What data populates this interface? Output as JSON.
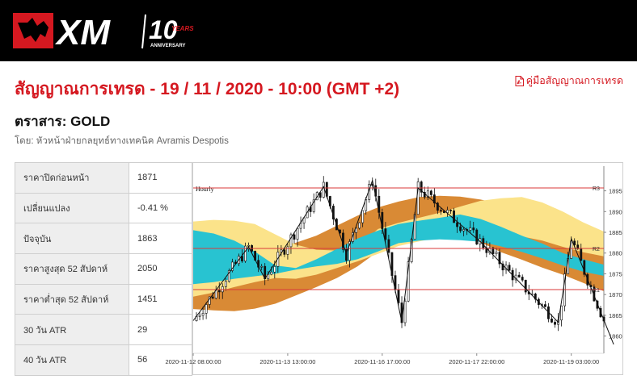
{
  "brand": {
    "name": "XM",
    "anniversary_number": "10",
    "anniversary_word": "YEARS",
    "anniversary_sub": "ANNIVERSARY"
  },
  "page": {
    "title": "สัญญาณการเทรด - 19 / 11 / 2020 - 10:00 (GMT +2)",
    "guide_link": "คู่มือสัญญาณการเทรด",
    "instrument": "ตราสาร: GOLD",
    "byline": "โดย: หัวหน้าฝ่ายกลยุทธ์ทางเทคนิค Avramis Despotis"
  },
  "stats": [
    {
      "label": "ราคาปิดก่อนหน้า",
      "value": "1871"
    },
    {
      "label": "เปลี่ยนแปลง",
      "value": "-0.41 %"
    },
    {
      "label": "ปัจจุบัน",
      "value": "1863"
    },
    {
      "label": "ราคาสูงสุด 52 สัปดาห์",
      "value": "2050"
    },
    {
      "label": "ราคาต่ำสุด 52 สัปดาห์",
      "value": "1451"
    },
    {
      "label": "30 วัน ATR",
      "value": "29"
    },
    {
      "label": "40 วัน ATR",
      "value": "56"
    }
  ],
  "chart_data": {
    "type": "candlestick",
    "timeframe_label": "Hourly",
    "ylim": [
      1857,
      1899
    ],
    "y_ticks": [
      1860,
      1865,
      1870,
      1875,
      1880,
      1885,
      1890,
      1895
    ],
    "x_ticks": [
      {
        "label": "2020-11-12 08:00:00",
        "x": 0
      },
      {
        "label": "2020-11-13 13:00:00",
        "x": 29
      },
      {
        "label": "2020-11-16 17:00:00",
        "x": 58
      },
      {
        "label": "2020-11-17 22:00:00",
        "x": 87
      },
      {
        "label": "2020-11-19 03:00:00",
        "x": 116
      }
    ],
    "x_range": [
      0,
      126
    ],
    "levels": [
      {
        "name": "R3",
        "value": 1895.7
      },
      {
        "name": "R2",
        "value": 1881.1
      },
      {
        "name": "R1",
        "value": 1871.2
      }
    ],
    "zigzag": [
      [
        0,
        1863.7
      ],
      [
        17,
        1881.5
      ],
      [
        22,
        1873.8
      ],
      [
        40,
        1896
      ],
      [
        47,
        1879.8
      ],
      [
        55,
        1897.5
      ],
      [
        64,
        1863.4
      ],
      [
        69,
        1895.7
      ],
      [
        88,
        1882.8
      ],
      [
        112,
        1863.3
      ],
      [
        116,
        1883.5
      ],
      [
        129,
        1858
      ]
    ],
    "bands": {
      "yellow_upper": [
        1887.6,
        1888,
        1887.8,
        1887,
        1884.5,
        1882,
        1880.8,
        1880.6,
        1881.5,
        1885.8,
        1887.3,
        1888.5,
        1889.7,
        1891.2,
        1892.6,
        1893.2,
        1893.5,
        1892.2,
        1890,
        1887.4,
        1885.2
      ],
      "cyan_upper": [
        1885.5,
        1884.7,
        1883,
        1880.4,
        1877,
        1876.4,
        1878.5,
        1881,
        1883.5,
        1885.4,
        1887,
        1887.8,
        1888.5,
        1889.3,
        1888.2,
        1886.3,
        1884.2,
        1882.3,
        1880,
        1878.5,
        1877.2
      ],
      "cyan_lower": [
        1872.5,
        1873,
        1873.8,
        1874.4,
        1875,
        1876,
        1876.8,
        1877.4,
        1878.5,
        1880.4,
        1882.4,
        1883,
        1883.3,
        1883.1,
        1882.7,
        1881.6,
        1880.3,
        1878.7,
        1877,
        1875.5,
        1874.5
      ],
      "yellow_lower": [
        1869.5,
        1870.5,
        1871.8,
        1873,
        1874,
        1873.8,
        1874.8,
        1876.4,
        1878,
        1879.8,
        1881.7,
        1882.8,
        1883.8,
        1884.3,
        1884.8,
        1884.5,
        1884,
        1883,
        1881.5,
        1880.2,
        1879.2
      ],
      "orange_upper": [
        1872.8,
        1873.8,
        1875.6,
        1877.5,
        1880.4,
        1882.5,
        1884.2,
        1886.6,
        1889,
        1891,
        1892.4,
        1893.5,
        1893.8,
        1893.6,
        1892.9,
        1891.8,
        1889.8,
        1887.5,
        1885,
        1882.8,
        1880.5
      ],
      "orange_lower": [
        1866.5,
        1866.2,
        1866,
        1866.6,
        1867.8,
        1869.8,
        1871.8,
        1874,
        1876.8,
        1880.4,
        1883.8,
        1884.2,
        1884.4,
        1884.1,
        1882.6,
        1880.2,
        1878.4,
        1876.5,
        1874.8,
        1872.8,
        1870.8
      ]
    }
  },
  "colors": {
    "brand_red": "#d51820",
    "band_yellow": "#fbe38a",
    "band_cyan": "#28c3d1",
    "band_orange": "#d98a35",
    "level_line": "#d93a3a",
    "zigzag": "#111111"
  },
  "icons": {
    "guide": "pdf-icon"
  }
}
